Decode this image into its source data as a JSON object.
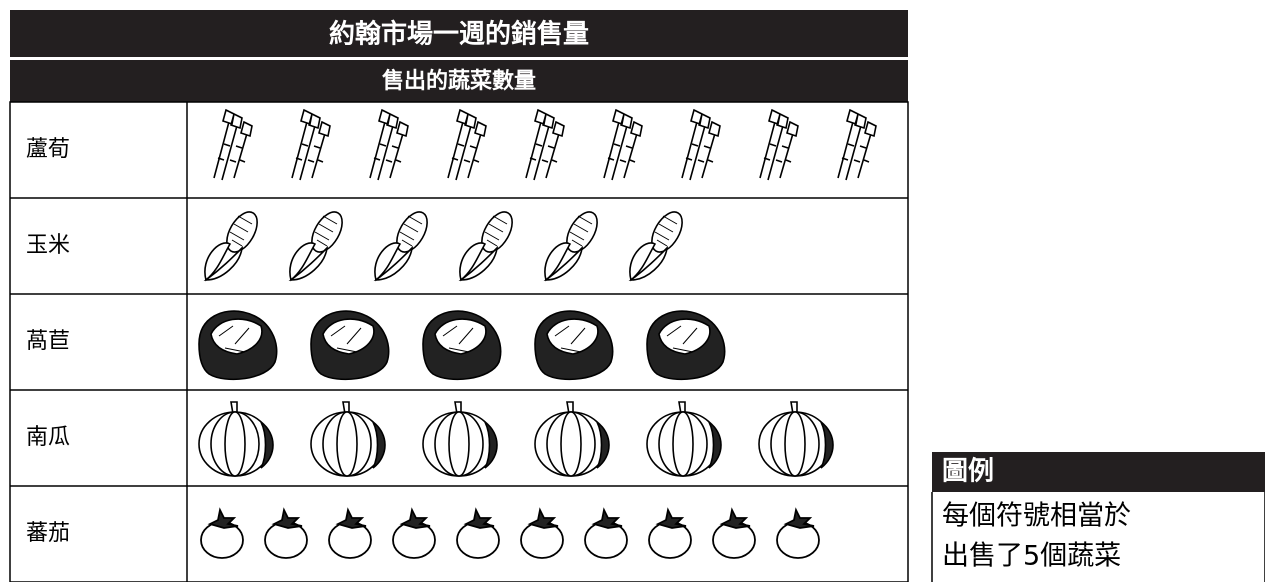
{
  "chart_data": {
    "type": "pictograph",
    "title": "約翰市場一週的銷售量",
    "subtitle": "售出的蔬菜數量",
    "categories": [
      "蘆荀",
      "玉米",
      "萵苣",
      "南瓜",
      "蕃茄"
    ],
    "values": [
      9,
      6,
      5,
      6,
      10
    ],
    "legend": {
      "title": "圖例",
      "lines": [
        "每個符號相當於",
        "出售了5個蔬菜"
      ]
    }
  }
}
